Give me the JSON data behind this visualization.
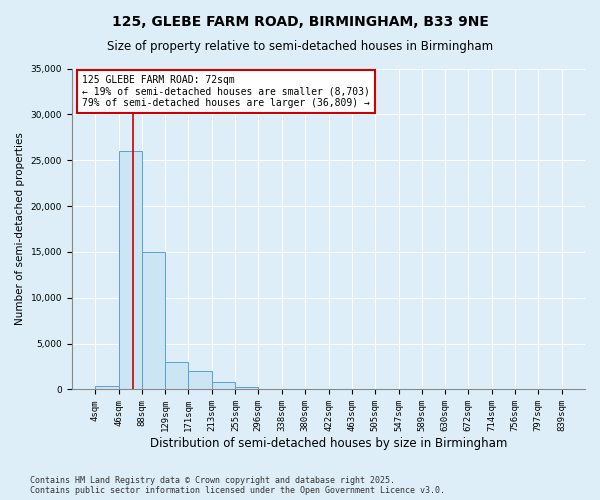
{
  "title": "125, GLEBE FARM ROAD, BIRMINGHAM, B33 9NE",
  "subtitle": "Size of property relative to semi-detached houses in Birmingham",
  "xlabel": "Distribution of semi-detached houses by size in Birmingham",
  "ylabel": "Number of semi-detached properties",
  "bin_edges": [
    4,
    46,
    88,
    129,
    171,
    213,
    255,
    296,
    338,
    380,
    422,
    463,
    505,
    547,
    589,
    630,
    672,
    714,
    756,
    797,
    839
  ],
  "bin_heights": [
    380,
    26000,
    15000,
    3000,
    2000,
    800,
    300,
    100,
    50,
    25,
    15,
    8,
    5,
    3,
    2,
    1,
    1,
    1,
    1,
    1
  ],
  "bar_facecolor": "#cce5f5",
  "bar_edgecolor": "#5a9fd4",
  "bar_alpha": 1.0,
  "property_size": 72,
  "property_line_color": "#cc0000",
  "annotation_text": "125 GLEBE FARM ROAD: 72sqm\n← 19% of semi-detached houses are smaller (8,703)\n79% of semi-detached houses are larger (36,809) →",
  "annotation_boxcolor": "white",
  "annotation_boxedge": "#cc0000",
  "ylim": [
    0,
    35000
  ],
  "yticks": [
    0,
    5000,
    10000,
    15000,
    20000,
    25000,
    30000,
    35000
  ],
  "background_color": "#ddeef8",
  "grid_color": "white",
  "footer_text": "Contains HM Land Registry data © Crown copyright and database right 2025.\nContains public sector information licensed under the Open Government Licence v3.0.",
  "title_fontsize": 10,
  "subtitle_fontsize": 8.5,
  "xlabel_fontsize": 8.5,
  "ylabel_fontsize": 7.5,
  "tick_fontsize": 6.5,
  "annotation_fontsize": 7,
  "footer_fontsize": 6
}
